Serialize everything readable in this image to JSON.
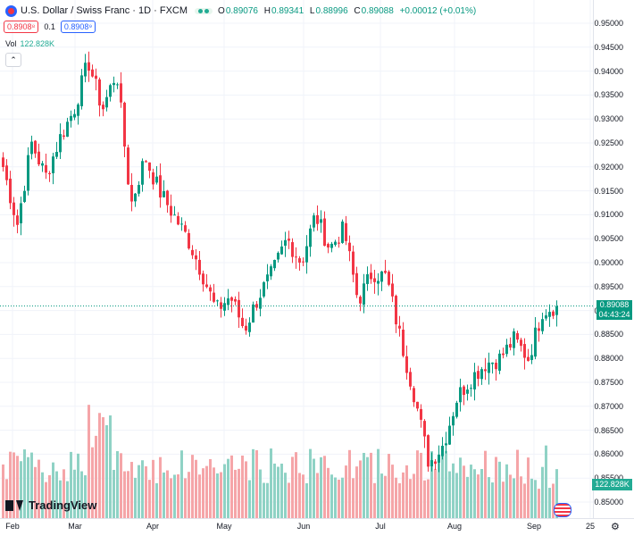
{
  "header": {
    "symbol": "U.S. Dollar / Swiss Franc · 1D · FXCM",
    "ohlc": [
      {
        "key": "O",
        "value": "0.89076"
      },
      {
        "key": "H",
        "value": "0.89341"
      },
      {
        "key": "L",
        "value": "0.88996"
      },
      {
        "key": "C",
        "value": "0.89088"
      },
      {
        "key": "",
        "value": "+0.00012 (+0.01%)"
      }
    ],
    "bid": "0.8908⁸",
    "spread": "0.1",
    "ask": "0.8908⁹",
    "volume_label": "Vol",
    "volume_value": "122.828K"
  },
  "price_axis": [
    "0.95000",
    "0.94500",
    "0.94000",
    "0.93500",
    "0.93000",
    "0.92500",
    "0.92000",
    "0.91500",
    "0.91000",
    "0.90500",
    "0.90000",
    "0.89500",
    "0.89000",
    "0.88500",
    "0.88000",
    "0.87500",
    "0.87000",
    "0.86500",
    "0.86000",
    "0.85500",
    "0.85000"
  ],
  "time_axis": [
    "Feb",
    "Mar",
    "Apr",
    "May",
    "Jun",
    "Jul",
    "Aug",
    "Sep",
    "25"
  ],
  "last_price": {
    "price": "0.89088",
    "countdown": "04:43:24"
  },
  "volume_tag": "122.828K",
  "logo_text": "TradingView",
  "colors": {
    "up": "#089981",
    "down": "#f23645",
    "vol_up": "#8fd2c5",
    "vol_down": "#f5a5a8"
  },
  "chart_data": {
    "type": "candlestick",
    "symbol": "USDCHF",
    "interval": "1D",
    "ylim": [
      0.85,
      0.95
    ],
    "anchors": [
      {
        "date": "Feb",
        "price": 0.92
      },
      {
        "date": "Feb",
        "price": 0.908
      },
      {
        "date": "Feb",
        "price": 0.925
      },
      {
        "date": "Feb",
        "price": 0.918
      },
      {
        "date": "Feb",
        "price": 0.926
      },
      {
        "date": "Mar",
        "price": 0.932
      },
      {
        "date": "Mar",
        "price": 0.942
      },
      {
        "date": "Mar",
        "price": 0.932
      },
      {
        "date": "Mar",
        "price": 0.94
      },
      {
        "date": "Mar",
        "price": 0.912
      },
      {
        "date": "Mar",
        "price": 0.922
      },
      {
        "date": "Mar",
        "price": 0.915
      },
      {
        "date": "Apr",
        "price": 0.91
      },
      {
        "date": "Apr",
        "price": 0.905
      },
      {
        "date": "Apr",
        "price": 0.898
      },
      {
        "date": "Apr",
        "price": 0.89
      },
      {
        "date": "Apr",
        "price": 0.893
      },
      {
        "date": "May",
        "price": 0.886
      },
      {
        "date": "May",
        "price": 0.893
      },
      {
        "date": "May",
        "price": 0.898
      },
      {
        "date": "May",
        "price": 0.905
      },
      {
        "date": "May",
        "price": 0.9
      },
      {
        "date": "Jun",
        "price": 0.91
      },
      {
        "date": "Jun",
        "price": 0.903
      },
      {
        "date": "Jun",
        "price": 0.907
      },
      {
        "date": "Jun",
        "price": 0.892
      },
      {
        "date": "Jun",
        "price": 0.898
      },
      {
        "date": "Jul",
        "price": 0.897
      },
      {
        "date": "Jul",
        "price": 0.884
      },
      {
        "date": "Jul",
        "price": 0.872
      },
      {
        "date": "Jul",
        "price": 0.858
      },
      {
        "date": "Jul",
        "price": 0.862
      },
      {
        "date": "Aug",
        "price": 0.872
      },
      {
        "date": "Aug",
        "price": 0.876
      },
      {
        "date": "Aug",
        "price": 0.879
      },
      {
        "date": "Aug",
        "price": 0.88
      },
      {
        "date": "Aug",
        "price": 0.884
      },
      {
        "date": "Sep",
        "price": 0.88
      },
      {
        "date": "Sep",
        "price": 0.89
      },
      {
        "date": "Sep",
        "price": 0.891
      }
    ],
    "volume_level_hint": "mostly 30-55% of volume pane, spike in early March"
  }
}
